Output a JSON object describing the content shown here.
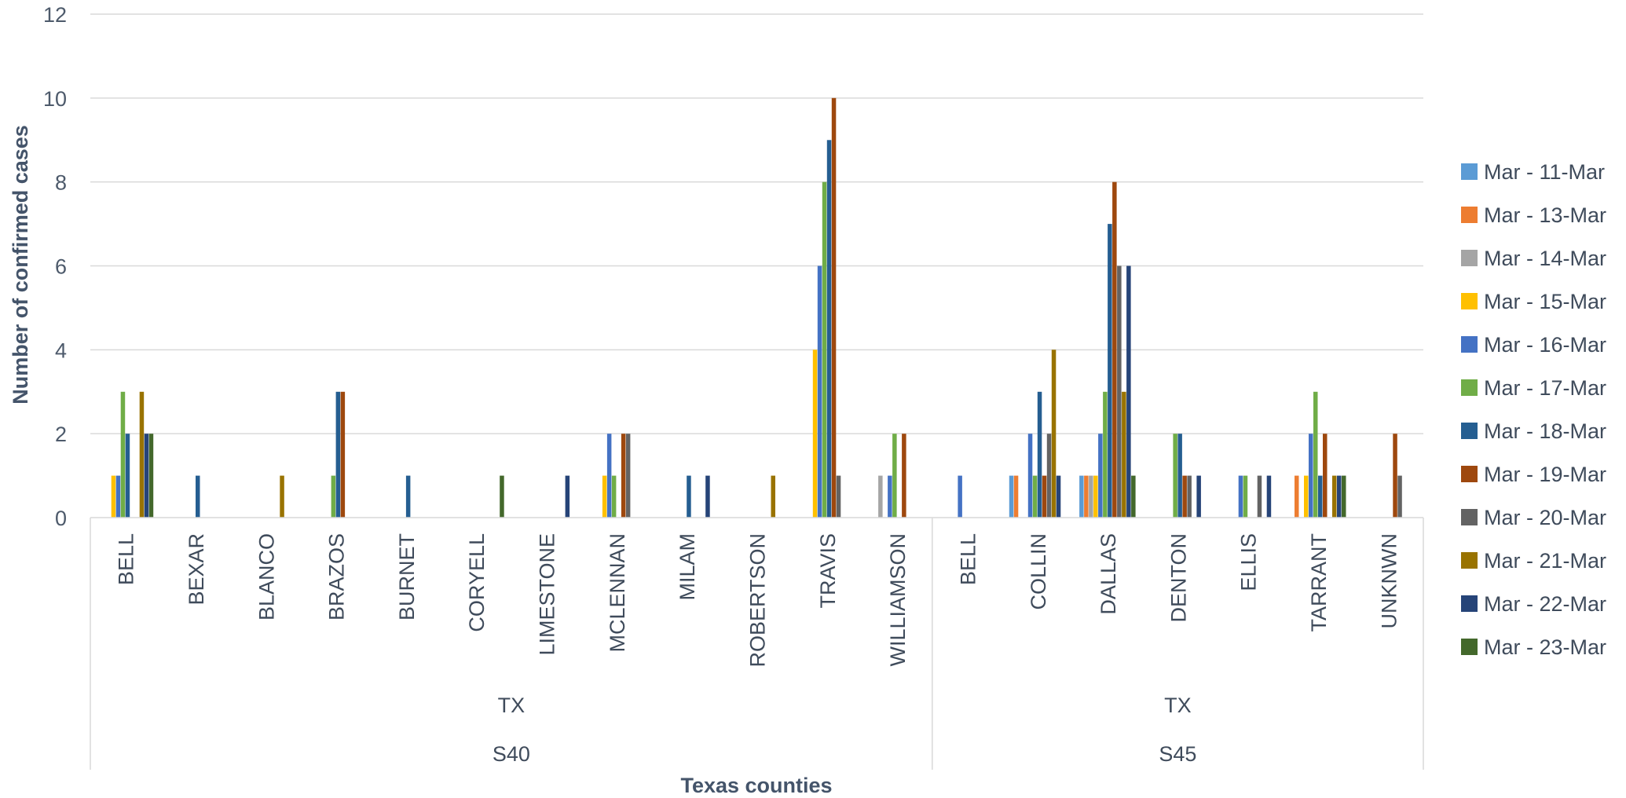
{
  "chart_data": {
    "type": "bar",
    "xlabel": "Texas counties",
    "ylabel": "Number of confirmed cases",
    "ylim": [
      0,
      12
    ],
    "yticks": [
      0,
      2,
      4,
      6,
      8,
      10,
      12
    ],
    "grid": true,
    "legend_position": "right",
    "categories": [
      {
        "county": "BELL",
        "state": "TX",
        "group": "S40"
      },
      {
        "county": "BEXAR",
        "state": "TX",
        "group": "S40"
      },
      {
        "county": "BLANCO",
        "state": "TX",
        "group": "S40"
      },
      {
        "county": "BRAZOS",
        "state": "TX",
        "group": "S40"
      },
      {
        "county": "BURNET",
        "state": "TX",
        "group": "S40"
      },
      {
        "county": "CORYELL",
        "state": "TX",
        "group": "S40"
      },
      {
        "county": "LIMESTONE",
        "state": "TX",
        "group": "S40"
      },
      {
        "county": "MCLENNAN",
        "state": "TX",
        "group": "S40"
      },
      {
        "county": "MILAM",
        "state": "TX",
        "group": "S40"
      },
      {
        "county": "ROBERTSON",
        "state": "TX",
        "group": "S40"
      },
      {
        "county": "TRAVIS",
        "state": "TX",
        "group": "S40"
      },
      {
        "county": "WILLIAMSON",
        "state": "TX",
        "group": "S40"
      },
      {
        "county": "BELL",
        "state": "TX",
        "group": "S45"
      },
      {
        "county": "COLLIN",
        "state": "TX",
        "group": "S45"
      },
      {
        "county": "DALLAS",
        "state": "TX",
        "group": "S45"
      },
      {
        "county": "DENTON",
        "state": "TX",
        "group": "S45"
      },
      {
        "county": "ELLIS",
        "state": "TX",
        "group": "S45"
      },
      {
        "county": "TARRANT",
        "state": "TX",
        "group": "S45"
      },
      {
        "county": "UNKNWN",
        "state": "TX",
        "group": "S45"
      }
    ],
    "groups": [
      {
        "state": "TX",
        "group": "S40"
      },
      {
        "state": "TX",
        "group": "S45"
      }
    ],
    "series": [
      {
        "name": "Mar - 11-Mar",
        "color": "#5b9bd5",
        "values": [
          0,
          0,
          0,
          0,
          0,
          0,
          0,
          0,
          0,
          0,
          0,
          0,
          0,
          1,
          1,
          0,
          0,
          0,
          0
        ]
      },
      {
        "name": "Mar - 13-Mar",
        "color": "#ed7d31",
        "values": [
          0,
          0,
          0,
          0,
          0,
          0,
          0,
          0,
          0,
          0,
          0,
          0,
          0,
          1,
          1,
          0,
          0,
          1,
          0
        ]
      },
      {
        "name": "Mar - 14-Mar",
        "color": "#a5a5a5",
        "values": [
          0,
          0,
          0,
          0,
          0,
          0,
          0,
          0,
          0,
          0,
          0,
          1,
          0,
          0,
          1,
          0,
          0,
          0,
          0
        ]
      },
      {
        "name": "Mar - 15-Mar",
        "color": "#ffc000",
        "values": [
          1,
          0,
          0,
          0,
          0,
          0,
          0,
          1,
          0,
          0,
          4,
          0,
          0,
          0,
          1,
          0,
          0,
          1,
          0
        ]
      },
      {
        "name": "Mar - 16-Mar",
        "color": "#4472c4",
        "values": [
          1,
          0,
          0,
          0,
          0,
          0,
          0,
          2,
          0,
          0,
          6,
          1,
          1,
          2,
          2,
          0,
          1,
          2,
          0
        ]
      },
      {
        "name": "Mar - 17-Mar",
        "color": "#70ad47",
        "values": [
          3,
          0,
          0,
          1,
          0,
          0,
          0,
          1,
          0,
          0,
          8,
          2,
          0,
          1,
          3,
          2,
          1,
          3,
          0
        ]
      },
      {
        "name": "Mar - 18-Mar",
        "color": "#255e91",
        "values": [
          2,
          1,
          0,
          3,
          1,
          0,
          0,
          0,
          1,
          0,
          9,
          0,
          0,
          3,
          7,
          2,
          0,
          1,
          0
        ]
      },
      {
        "name": "Mar - 19-Mar",
        "color": "#9e480e",
        "values": [
          0,
          0,
          0,
          3,
          0,
          0,
          0,
          2,
          0,
          0,
          10,
          2,
          0,
          1,
          8,
          1,
          0,
          2,
          2
        ]
      },
      {
        "name": "Mar - 20-Mar",
        "color": "#636363",
        "values": [
          0,
          0,
          0,
          0,
          0,
          0,
          0,
          2,
          0,
          0,
          1,
          0,
          0,
          2,
          6,
          1,
          1,
          0,
          1
        ]
      },
      {
        "name": "Mar - 21-Mar",
        "color": "#997300",
        "values": [
          3,
          0,
          1,
          0,
          0,
          0,
          0,
          0,
          0,
          1,
          0,
          0,
          0,
          4,
          3,
          0,
          0,
          1,
          0
        ]
      },
      {
        "name": "Mar - 22-Mar",
        "color": "#264478",
        "values": [
          2,
          0,
          0,
          0,
          0,
          0,
          1,
          0,
          1,
          0,
          0,
          0,
          0,
          1,
          6,
          1,
          1,
          1,
          0
        ]
      },
      {
        "name": "Mar - 23-Mar",
        "color": "#43682b",
        "values": [
          2,
          0,
          0,
          0,
          0,
          1,
          0,
          0,
          0,
          0,
          0,
          0,
          0,
          0,
          1,
          0,
          0,
          1,
          0
        ]
      }
    ]
  }
}
